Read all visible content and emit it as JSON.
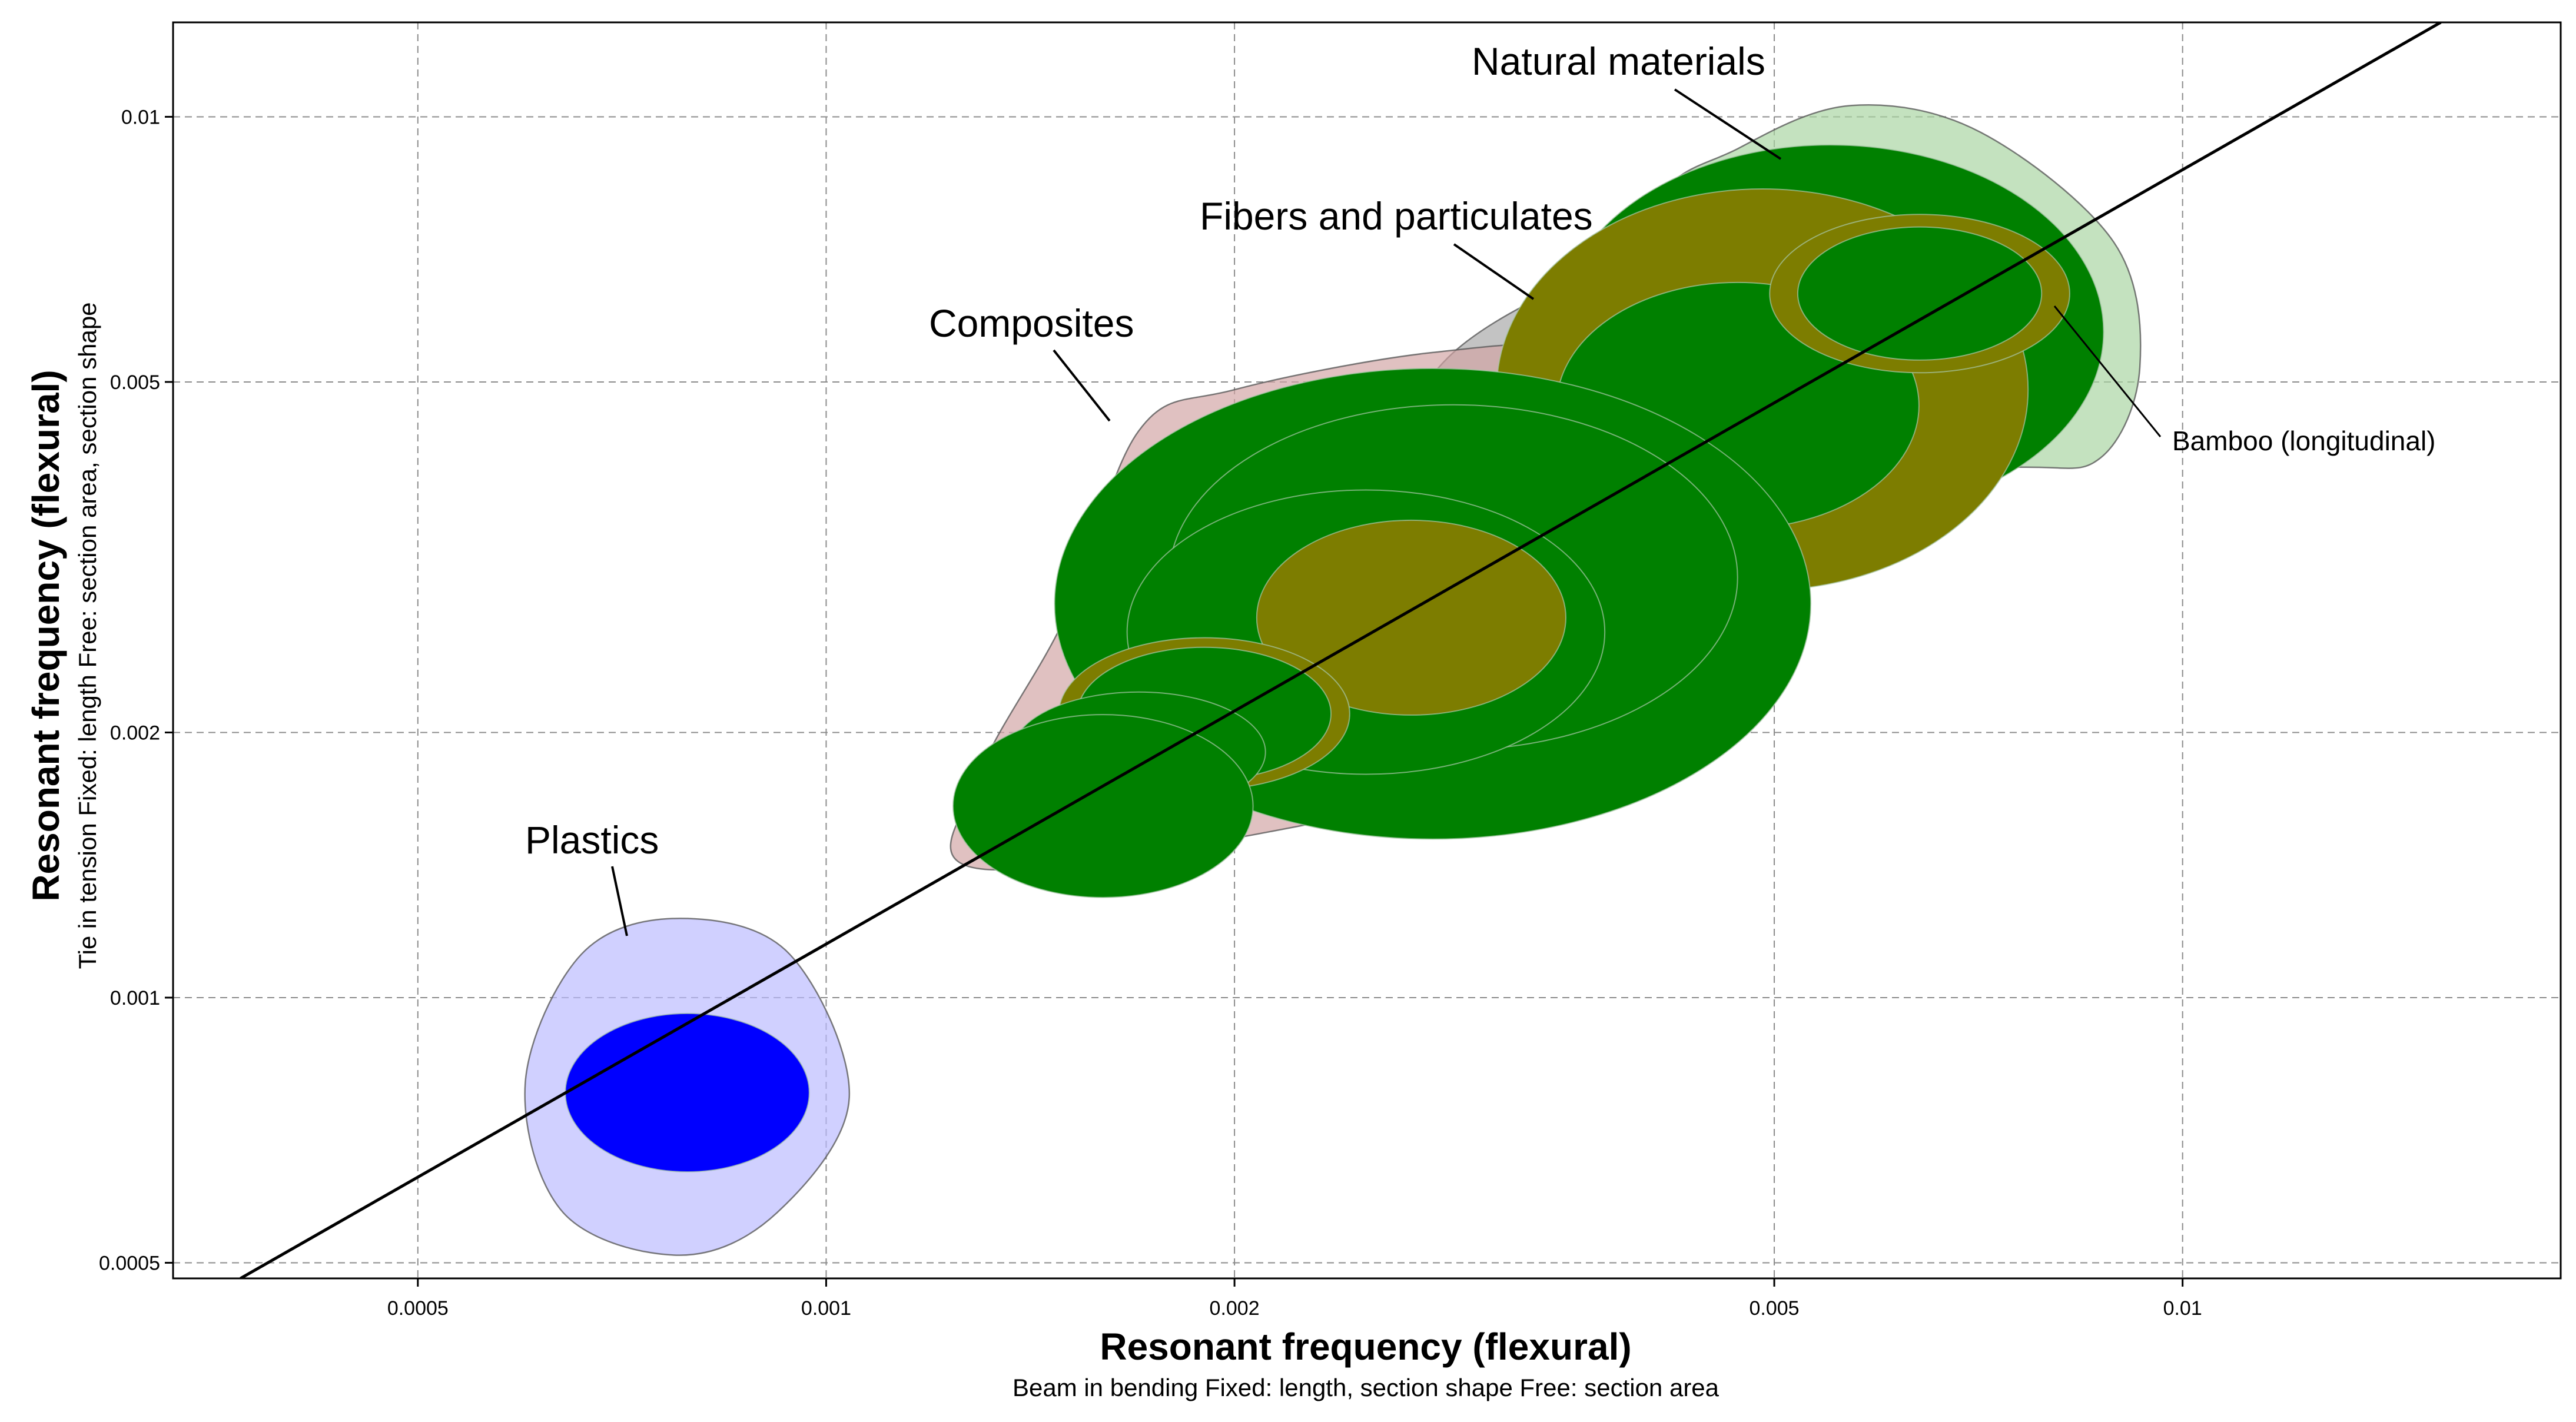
{
  "chart_data": {
    "type": "scatter",
    "subtype": "material property bubble chart (log-log)",
    "xscale": "log",
    "yscale": "log",
    "xlim": [
      0.00033,
      0.019
    ],
    "ylim": [
      0.00048,
      0.0128
    ],
    "grid": true,
    "xlabel": "Resonant frequency (flexural)",
    "xlabel_sub": "Beam in bending   Fixed: length, section shape   Free: section area",
    "ylabel": "Resonant frequency (flexural)",
    "ylabel_sub": "Tie in tension   Fixed: length   Free: section area, section shape",
    "xticks": [
      {
        "value": 0.0005,
        "label": "0.0005"
      },
      {
        "value": 0.001,
        "label": "0.001"
      },
      {
        "value": 0.002,
        "label": "0.002"
      },
      {
        "value": 0.005,
        "label": "0.005"
      },
      {
        "value": 0.01,
        "label": "0.01"
      }
    ],
    "yticks": [
      {
        "value": 0.0005,
        "label": "0.0005"
      },
      {
        "value": 0.001,
        "label": "0.001"
      },
      {
        "value": 0.002,
        "label": "0.002"
      },
      {
        "value": 0.005,
        "label": "0.005"
      },
      {
        "value": 0.01,
        "label": "0.01"
      }
    ],
    "guide_line": {
      "name": "slope 1 guideline",
      "points": [
        [
          0.00037,
          0.00048
        ],
        [
          0.0155,
          0.0128
        ]
      ]
    },
    "envelopes": [
      {
        "name": "Natural materials",
        "color": "#a8d4a0",
        "points": [
          [
            0.0041,
            0.0079
          ],
          [
            0.0047,
            0.0092
          ],
          [
            0.0057,
            0.0103
          ],
          [
            0.0071,
            0.0096
          ],
          [
            0.0089,
            0.0072
          ],
          [
            0.0093,
            0.0052
          ],
          [
            0.0087,
            0.0041
          ],
          [
            0.0075,
            0.004
          ],
          [
            0.0049,
            0.004
          ],
          [
            0.0041,
            0.005
          ]
        ]
      },
      {
        "name": "Fibers and particulates",
        "color": "#a6a6a6",
        "points": [
          [
            0.0042,
            0.007
          ],
          [
            0.0075,
            0.0073
          ],
          [
            0.0077,
            0.0065
          ],
          [
            0.0072,
            0.004
          ],
          [
            0.0061,
            0.0033
          ],
          [
            0.004,
            0.0025
          ],
          [
            0.003,
            0.002
          ],
          [
            0.0018,
            0.0016
          ],
          [
            0.0016,
            0.0018
          ],
          [
            0.0017,
            0.0022
          ],
          [
            0.0024,
            0.0036
          ],
          [
            0.0029,
            0.0054
          ],
          [
            0.0038,
            0.0068
          ]
        ]
      },
      {
        "name": "Composites",
        "color": "#d2a4a4",
        "points": [
          [
            0.0017,
            0.0044
          ],
          [
            0.002,
            0.0049
          ],
          [
            0.0028,
            0.0054
          ],
          [
            0.0036,
            0.0054
          ],
          [
            0.0041,
            0.0043
          ],
          [
            0.0043,
            0.0034
          ],
          [
            0.004,
            0.0025
          ],
          [
            0.0036,
            0.0019
          ],
          [
            0.0024,
            0.0016
          ],
          [
            0.0013,
            0.0014
          ],
          [
            0.0013,
            0.0018
          ],
          [
            0.0015,
            0.0027
          ]
        ]
      },
      {
        "name": "Plastics",
        "color": "#b9b9ff",
        "points": [
          [
            0.00078,
            0.00123
          ],
          [
            0.00094,
            0.00112
          ],
          [
            0.00104,
            0.00077
          ],
          [
            0.00092,
            0.00057
          ],
          [
            0.00078,
            0.00051
          ],
          [
            0.00064,
            0.00057
          ],
          [
            0.0006,
            0.0008
          ],
          [
            0.00066,
            0.00112
          ]
        ]
      }
    ],
    "bubbles": [
      {
        "name": "natural material",
        "group": "Natural materials",
        "color": "#008000",
        "x": 0.0055,
        "y": 0.0057,
        "width_factor": 1.59,
        "height_factor": 1.63
      },
      {
        "name": "natural material",
        "group": "Natural materials",
        "color": "#7d7d00",
        "x": 0.0049,
        "y": 0.0049,
        "width_factor": 1.57,
        "height_factor": 1.69
      },
      {
        "name": "natural material",
        "group": "Natural materials",
        "color": "#008000",
        "x": 0.0047,
        "y": 0.0047,
        "width_factor": 1.36,
        "height_factor": 1.38
      },
      {
        "name": "Bamboo (longitudinal)",
        "group": "Natural materials",
        "color": "#7d7d00",
        "x": 0.0064,
        "y": 0.0063,
        "width_factor": 1.29,
        "height_factor": 1.23
      },
      {
        "name": "Bamboo (longitudinal)",
        "group": "Natural materials",
        "color": "#008000",
        "x": 0.0064,
        "y": 0.0063,
        "width_factor": 1.23,
        "height_factor": 1.19
      },
      {
        "name": "composite",
        "group": "Composites",
        "color": "#008000",
        "x": 0.0028,
        "y": 0.0028,
        "width_factor": 1.9,
        "height_factor": 1.85
      },
      {
        "name": "composite",
        "group": "Composites",
        "color": "#008000",
        "x": 0.0029,
        "y": 0.003,
        "width_factor": 1.62,
        "height_factor": 1.57
      },
      {
        "name": "composite",
        "group": "Composites",
        "color": "#008000",
        "x": 0.0025,
        "y": 0.0026,
        "width_factor": 1.5,
        "height_factor": 1.45
      },
      {
        "name": "composite",
        "group": "Composites",
        "color": "#7d7d00",
        "x": 0.0027,
        "y": 0.0027,
        "width_factor": 1.3,
        "height_factor": 1.29
      },
      {
        "name": "composite",
        "group": "Composites",
        "color": "#7d7d00",
        "x": 0.0019,
        "y": 0.0021,
        "width_factor": 1.28,
        "height_factor": 1.22
      },
      {
        "name": "composite",
        "group": "Composites",
        "color": "#008000",
        "x": 0.0019,
        "y": 0.0021,
        "width_factor": 1.24,
        "height_factor": 1.19
      },
      {
        "name": "composite",
        "group": "Composites",
        "color": "#008000",
        "x": 0.0017,
        "y": 0.0019,
        "width_factor": 1.24,
        "height_factor": 1.17
      },
      {
        "name": "composite",
        "group": "Composites",
        "color": "#008000",
        "x": 0.0016,
        "y": 0.00165,
        "width_factor": 1.29,
        "height_factor": 1.27
      },
      {
        "name": "plastic",
        "group": "Plastics",
        "color": "#0000ff",
        "x": 0.00079,
        "y": 0.00078,
        "width_factor": 1.23,
        "height_factor": 1.23
      }
    ],
    "labels": [
      {
        "text": "Natural materials",
        "kind": "group",
        "target": [
          0.0047,
          0.0087
        ]
      },
      {
        "text": "Fibers and particulates",
        "kind": "group",
        "target": [
          0.0034,
          0.0063
        ]
      },
      {
        "text": "Composites",
        "kind": "group",
        "target": [
          0.0017,
          0.0044
        ]
      },
      {
        "text": "Plastics",
        "kind": "group",
        "target": [
          0.00076,
          0.0012
        ]
      },
      {
        "text": "Bamboo (longitudinal)",
        "kind": "material",
        "target": [
          0.0071,
          0.0062
        ]
      }
    ]
  }
}
